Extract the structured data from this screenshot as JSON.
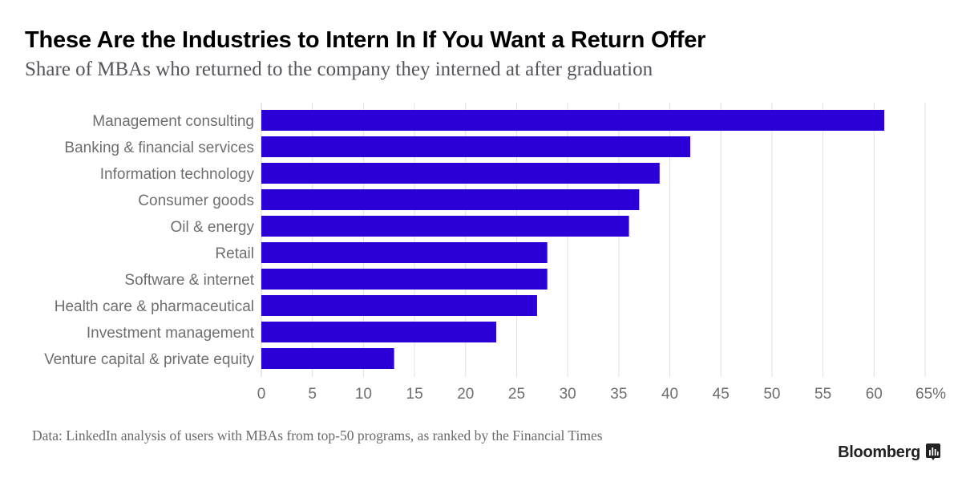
{
  "header": {
    "title": "These Are the Industries to Intern In If You Want a Return Offer",
    "subtitle": "Share of MBAs who returned to the company they interned at after graduation"
  },
  "footer": {
    "source": "Data: LinkedIn analysis of users with MBAs from top-50 programs, as ranked by the Financial Times",
    "brand": "Bloomberg",
    "brand_icon": "bloomberg-chat-bars-icon"
  },
  "colors": {
    "bar": "#2a00d6",
    "grid": "#e0e0e0",
    "label": "#6e6e6e"
  },
  "chart_data": {
    "type": "bar",
    "orientation": "horizontal",
    "title": "These Are the Industries to Intern In If You Want a Return Offer",
    "subtitle": "Share of MBAs who returned to the company they interned at after graduation",
    "xlabel": "",
    "ylabel": "",
    "categories": [
      "Management consulting",
      "Banking & financial services",
      "Information technology",
      "Consumer goods",
      "Oil & energy",
      "Retail",
      "Software & internet",
      "Health care & pharmaceutical",
      "Investment management",
      "Venture capital & private equity"
    ],
    "values": [
      61,
      42,
      39,
      37,
      36,
      28,
      28,
      27,
      23,
      13
    ],
    "xlim": [
      0,
      65
    ],
    "ticks": [
      0,
      5,
      10,
      15,
      20,
      25,
      30,
      35,
      40,
      45,
      50,
      55,
      60,
      65
    ],
    "tick_labels": [
      "0",
      "5",
      "10",
      "15",
      "20",
      "25",
      "30",
      "35",
      "40",
      "45",
      "50",
      "55",
      "60",
      "65%"
    ],
    "grid": true,
    "legend": "none"
  }
}
